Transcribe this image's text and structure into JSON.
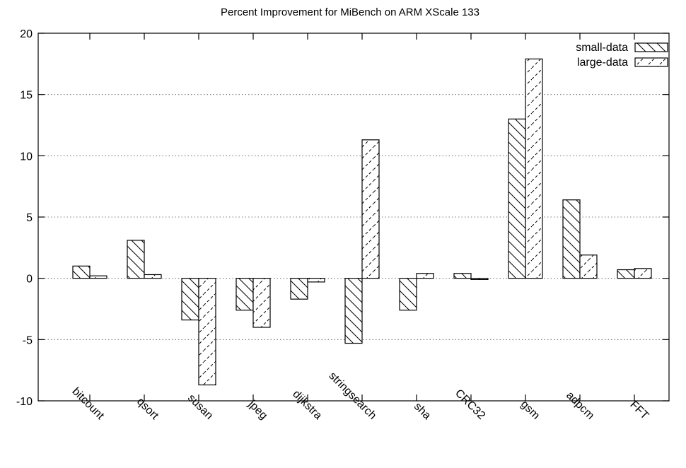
{
  "chart_data": {
    "type": "bar",
    "title": "Percent Improvement for MiBench on ARM XScale 133",
    "xlabel": "",
    "ylabel": "",
    "ylim": [
      -10,
      20
    ],
    "yticks": [
      -10,
      -5,
      0,
      5,
      10,
      15,
      20
    ],
    "grid": true,
    "legend_position": "top-right",
    "categories": [
      "bitcount",
      "qsort",
      "susan",
      "jpeg",
      "dijkstra",
      "stringsearch",
      "sha",
      "CRC32",
      "gsm",
      "adpcm",
      "FFT"
    ],
    "series": [
      {
        "name": "small-data",
        "pattern": "backslash-hatch",
        "values": [
          1.0,
          3.1,
          -3.4,
          -2.6,
          -1.7,
          -5.3,
          -2.6,
          0.4,
          13.0,
          6.4,
          0.7
        ]
      },
      {
        "name": "large-data",
        "pattern": "slash-dash-hatch",
        "values": [
          0.2,
          0.3,
          -8.7,
          -4.0,
          -0.3,
          11.3,
          0.4,
          -0.1,
          17.9,
          1.9,
          0.8
        ]
      }
    ]
  }
}
